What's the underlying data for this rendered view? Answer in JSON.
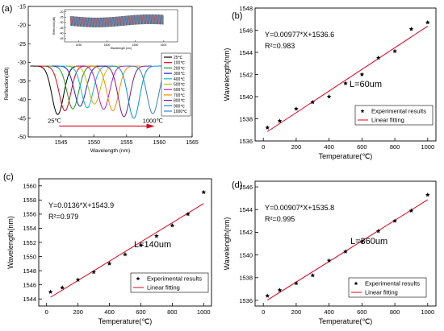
{
  "chart_data": [
    {
      "panel_label": "(a)",
      "type": "line",
      "xlabel": "Wavelength (nm)",
      "ylabel": "Reflection(dB)",
      "xlim": [
        1540,
        1565
      ],
      "ylim": [
        -50,
        -15
      ],
      "xticks": [
        1545,
        1550,
        1555,
        1560,
        1565
      ],
      "yticks": [
        -50,
        -45,
        -40,
        -35,
        -30,
        -25,
        -20,
        -15
      ],
      "legend_position": "right",
      "annotation_left": "25℃",
      "annotation_right": "1000℃",
      "series": [
        {
          "name": "25℃",
          "color": "#000000",
          "dip_center": 1544.5,
          "dip_depth": -44.0
        },
        {
          "name": "100℃",
          "color": "#e0001b",
          "dip_center": 1545.6,
          "dip_depth": -43.0
        },
        {
          "name": "200℃",
          "color": "#1a9b1a",
          "dip_center": 1546.8,
          "dip_depth": -42.5
        },
        {
          "name": "300℃",
          "color": "#1f1fd6",
          "dip_center": 1547.9,
          "dip_depth": -41.8
        },
        {
          "name": "400℃",
          "color": "#10b8c8",
          "dip_center": 1549.0,
          "dip_depth": -42.2
        },
        {
          "name": "500℃",
          "color": "#c0c000",
          "dip_center": 1550.1,
          "dip_depth": -41.2
        },
        {
          "name": "600℃",
          "color": "#b81ec8",
          "dip_center": 1551.5,
          "dip_depth": -42.6
        },
        {
          "name": "700℃",
          "color": "#ff8c00",
          "dip_center": 1552.9,
          "dip_depth": -43.0
        },
        {
          "name": "800℃",
          "color": "#7a1f8a",
          "dip_center": 1554.6,
          "dip_depth": -44.6
        },
        {
          "name": "900℃",
          "color": "#0090d8",
          "dip_center": 1556.1,
          "dip_depth": -45.0
        },
        {
          "name": "1000℃",
          "color": "#3a7fd8",
          "dip_center": 1559.0,
          "dip_depth": -43.8
        }
      ],
      "inset": {
        "xlabel": "Wavelength (nm)",
        "ylabel": "Reflection(dB)",
        "xticks": [
          1450,
          1500,
          1550,
          1600
        ],
        "yticks": [
          -20,
          -25,
          -30,
          -35,
          -40,
          -45
        ]
      }
    },
    {
      "panel_label": "(b)",
      "type": "scatter",
      "xlabel": "Temperature(℃)",
      "ylabel": "Wavelength(nm)",
      "xlim": [
        -50,
        1050
      ],
      "ylim": [
        1536,
        1548
      ],
      "xticks": [
        0,
        200,
        400,
        600,
        800,
        1000
      ],
      "yticks": [
        1536,
        1538,
        1540,
        1542,
        1544,
        1546,
        1548
      ],
      "x": [
        25,
        100,
        200,
        300,
        400,
        500,
        600,
        700,
        800,
        900,
        1000
      ],
      "y": [
        1537.2,
        1537.8,
        1538.9,
        1539.5,
        1540.0,
        1541.2,
        1542.0,
        1543.5,
        1544.1,
        1546.1,
        1546.7
      ],
      "fit": {
        "slope": 0.00977,
        "intercept": 1536.6
      },
      "equation": "Y=0.00977*X+1536.6",
      "r2_label": "R²=0.983",
      "length_label": "L=60um",
      "legend": [
        "Experimental results",
        "Linear fitting"
      ],
      "legend_position": "right"
    },
    {
      "panel_label": "(c)",
      "type": "scatter",
      "xlabel": "Temperature(℃)",
      "ylabel": "Wavelength(nm)",
      "xlim": [
        -50,
        1050
      ],
      "ylim": [
        1543,
        1561
      ],
      "xticks": [
        0,
        200,
        400,
        600,
        800,
        1000
      ],
      "yticks": [
        1544,
        1546,
        1548,
        1550,
        1552,
        1554,
        1556,
        1558,
        1560
      ],
      "x": [
        25,
        100,
        200,
        300,
        400,
        500,
        600,
        700,
        800,
        900,
        1000
      ],
      "y": [
        1545.0,
        1545.6,
        1546.7,
        1547.8,
        1549.0,
        1550.3,
        1551.6,
        1552.9,
        1554.4,
        1556.0,
        1559.1
      ],
      "fit": {
        "slope": 0.0136,
        "intercept": 1543.9
      },
      "equation": "Y=0.0136*X+1543.9",
      "r2_label": "R²=0.979",
      "length_label": "L=140um",
      "legend": [
        "Experimental results",
        "Linear fitting"
      ],
      "legend_position": "right"
    },
    {
      "panel_label": "(d)",
      "type": "scatter",
      "xlabel": "Temperature(℃)",
      "ylabel": "Wavelength(nm)",
      "xlim": [
        -50,
        1050
      ],
      "ylim": [
        1535.5,
        1546.5
      ],
      "xticks": [
        0,
        200,
        400,
        600,
        800,
        1000
      ],
      "yticks": [
        1536,
        1538,
        1540,
        1542,
        1544,
        1546
      ],
      "x": [
        25,
        100,
        200,
        300,
        400,
        500,
        600,
        700,
        800,
        900,
        1000
      ],
      "y": [
        1536.4,
        1536.9,
        1537.5,
        1538.2,
        1539.5,
        1540.3,
        1541.2,
        1542.1,
        1543.0,
        1543.9,
        1545.3
      ],
      "fit": {
        "slope": 0.00907,
        "intercept": 1535.8
      },
      "equation": "Y=0.00907*X+1535.8",
      "r2_label": "R²=0.995",
      "length_label": "L=360um",
      "legend": [
        "Experimental results",
        "Linear fitting"
      ],
      "legend_position": "right"
    }
  ]
}
